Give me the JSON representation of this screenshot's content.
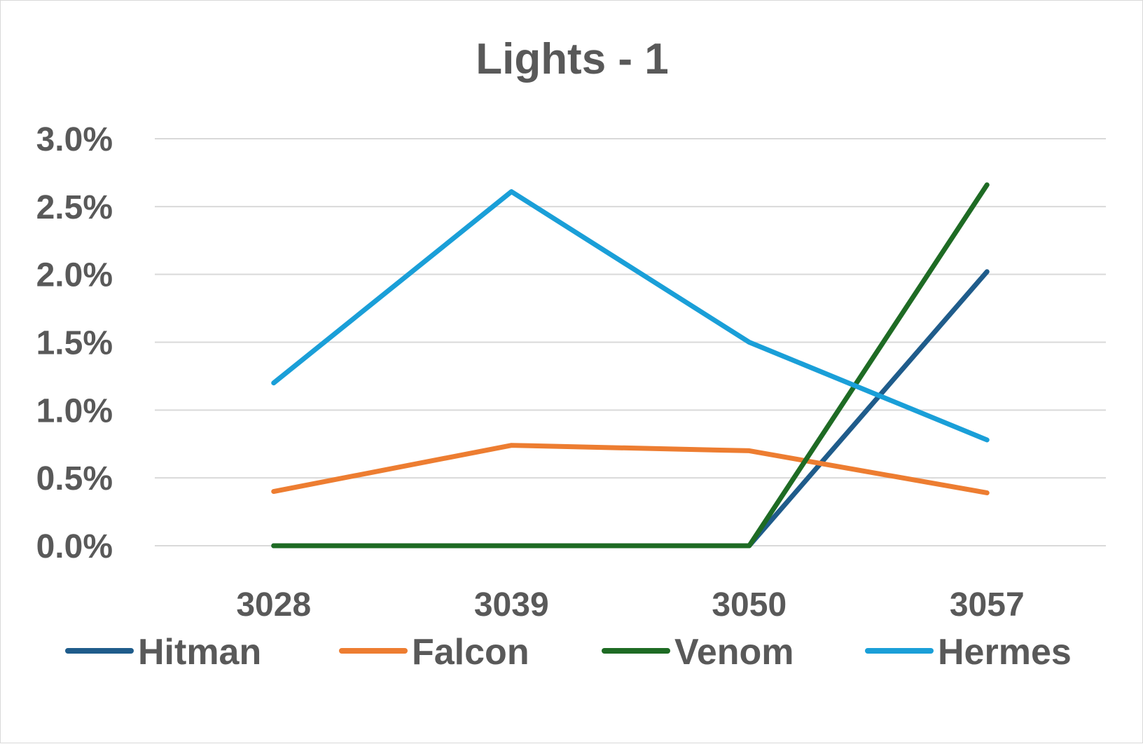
{
  "chart_data": {
    "type": "line",
    "title": "Lights - 1",
    "xlabel": "",
    "ylabel": "",
    "categories": [
      "3028",
      "3039",
      "3050",
      "3057"
    ],
    "ylim": [
      0,
      0.03
    ],
    "yticks": [
      0,
      0.005,
      0.01,
      0.015,
      0.02,
      0.025,
      0.03
    ],
    "ytick_labels": [
      "0.0%",
      "0.5%",
      "1.0%",
      "1.5%",
      "2.0%",
      "2.5%",
      "3.0%"
    ],
    "grid": true,
    "legend_position": "bottom",
    "series": [
      {
        "name": "Hitman",
        "color": "#1f5c8b",
        "values": [
          0.0,
          0.0,
          0.0,
          0.0202
        ]
      },
      {
        "name": "Falcon",
        "color": "#ed7d31",
        "values": [
          0.004,
          0.0074,
          0.007,
          0.0039
        ]
      },
      {
        "name": "Venom",
        "color": "#1e6b24",
        "values": [
          0.0,
          0.0,
          0.0,
          0.0266
        ]
      },
      {
        "name": "Hermes",
        "color": "#1a9fd8",
        "values": [
          0.012,
          0.0261,
          0.015,
          0.0078
        ]
      }
    ]
  }
}
